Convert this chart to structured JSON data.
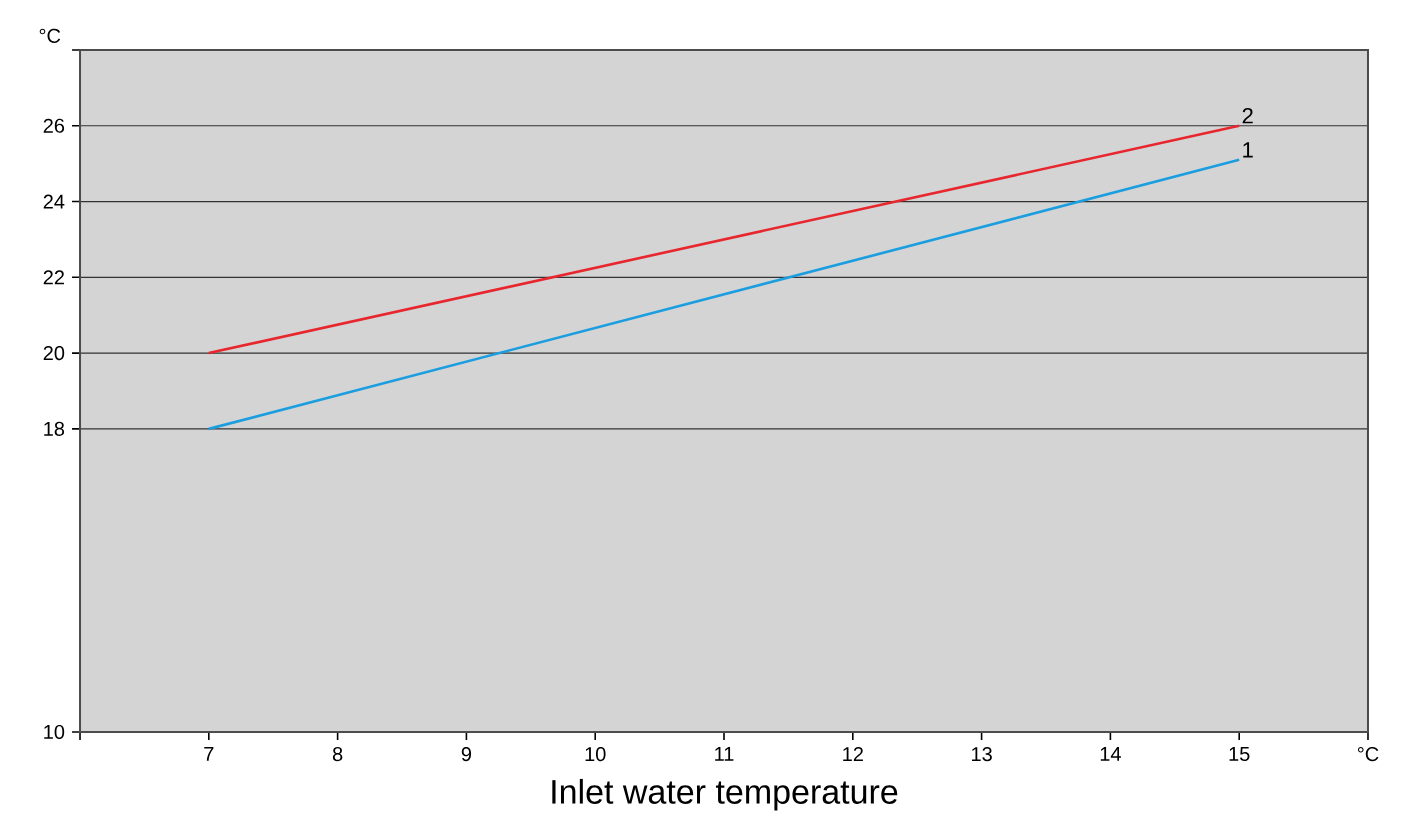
{
  "chart_data": {
    "type": "line",
    "xlabel": "Inlet water temperature",
    "ylabel": "°C",
    "x": [
      7,
      15
    ],
    "series": [
      {
        "name": "1",
        "color": "#1a9ee0",
        "values": [
          18,
          25.1
        ]
      },
      {
        "name": "2",
        "color": "#e8262e",
        "values": [
          20,
          26
        ]
      }
    ],
    "xlim": [
      6,
      16
    ],
    "xticks": [
      {
        "value": 6,
        "label": null
      },
      7,
      8,
      9,
      10,
      11,
      12,
      13,
      14,
      15,
      {
        "value": 16,
        "label": "°C"
      }
    ],
    "ylim": [
      10,
      28
    ],
    "yticks": [
      10,
      18,
      20,
      22,
      24,
      26,
      {
        "value": 28,
        "label": null
      }
    ],
    "grid": "y",
    "legend": false,
    "marker": "none",
    "line_style": "solid"
  }
}
